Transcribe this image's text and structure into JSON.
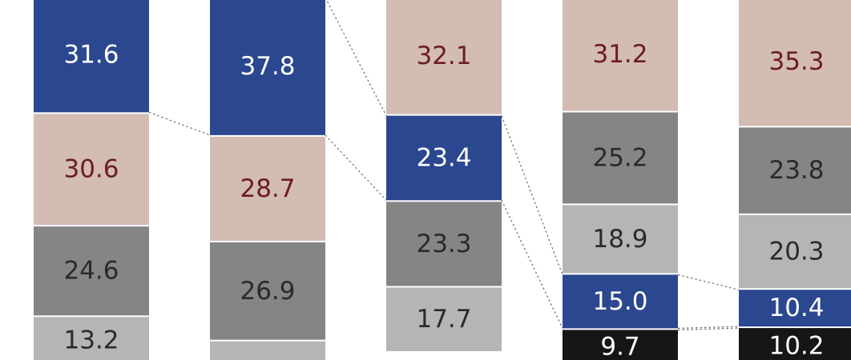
{
  "chart_data": {
    "type": "bar",
    "stacked": true,
    "grid": false,
    "legend": "none",
    "categories": [
      "",
      "",
      "",
      "",
      ""
    ],
    "columns": [
      {
        "segments": [
          {
            "value": 31.6,
            "label": "31.6",
            "color": "#2b4790",
            "text_color": "#ffffff"
          },
          {
            "value": 30.6,
            "label": "30.6",
            "color": "#d3bcb2",
            "text_color": "#6b1e1e"
          },
          {
            "value": 24.6,
            "label": "24.6",
            "color": "#858585",
            "text_color": "#2a2a2a"
          },
          {
            "value": 13.2,
            "label": "13.2",
            "color": "#b5b5b5",
            "text_color": "#2a2a2a"
          }
        ]
      },
      {
        "segments": [
          {
            "value": 37.8,
            "label": "37.8",
            "color": "#2b4790",
            "text_color": "#ffffff"
          },
          {
            "value": 28.7,
            "label": "28.7",
            "color": "#d3bcb2",
            "text_color": "#6b1e1e"
          },
          {
            "value": 26.9,
            "label": "26.9",
            "color": "#858585",
            "text_color": "#2a2a2a"
          },
          {
            "value": 6.6,
            "label": "",
            "color": "#b5b5b5",
            "text_color": "#2a2a2a"
          }
        ]
      },
      {
        "segments": [
          {
            "value": 32.1,
            "label": "32.1",
            "color": "#d3bcb2",
            "text_color": "#6b1e1e"
          },
          {
            "value": 23.4,
            "label": "23.4",
            "color": "#2b4790",
            "text_color": "#ffffff"
          },
          {
            "value": 23.3,
            "label": "23.3",
            "color": "#858585",
            "text_color": "#2a2a2a"
          },
          {
            "value": 17.7,
            "label": "17.7",
            "color": "#b5b5b5",
            "text_color": "#2a2a2a"
          }
        ]
      },
      {
        "segments": [
          {
            "value": 31.2,
            "label": "31.2",
            "color": "#d3bcb2",
            "text_color": "#6b1e1e"
          },
          {
            "value": 25.2,
            "label": "25.2",
            "color": "#858585",
            "text_color": "#2a2a2a"
          },
          {
            "value": 18.9,
            "label": "18.9",
            "color": "#b5b5b5",
            "text_color": "#2a2a2a"
          },
          {
            "value": 15.0,
            "label": "15.0",
            "color": "#2b4790",
            "text_color": "#ffffff"
          },
          {
            "value": 9.7,
            "label": "9.7",
            "color": "#161616",
            "text_color": "#ffffff"
          }
        ]
      },
      {
        "segments": [
          {
            "value": 35.3,
            "label": "35.3",
            "color": "#d3bcb2",
            "text_color": "#6b1e1e"
          },
          {
            "value": 23.8,
            "label": "23.8",
            "color": "#858585",
            "text_color": "#2a2a2a"
          },
          {
            "value": 20.3,
            "label": "20.3",
            "color": "#b5b5b5",
            "text_color": "#2a2a2a"
          },
          {
            "value": 10.4,
            "label": "10.4",
            "color": "#2b4790",
            "text_color": "#ffffff"
          },
          {
            "value": 10.2,
            "label": "10.2",
            "color": "#161616",
            "text_color": "#ffffff"
          }
        ]
      }
    ],
    "connectors": [
      {
        "from_column": 0,
        "to_column": 1,
        "series_color": "#2b4790"
      },
      {
        "from_column": 1,
        "to_column": 2,
        "series_color": "#2b4790"
      },
      {
        "from_column": 2,
        "to_column": 3,
        "series_color": "#2b4790"
      },
      {
        "from_column": 3,
        "to_column": 4,
        "series_color": "#2b4790"
      },
      {
        "from_column": 3,
        "to_column": 4,
        "series_color": "#161616"
      }
    ]
  }
}
